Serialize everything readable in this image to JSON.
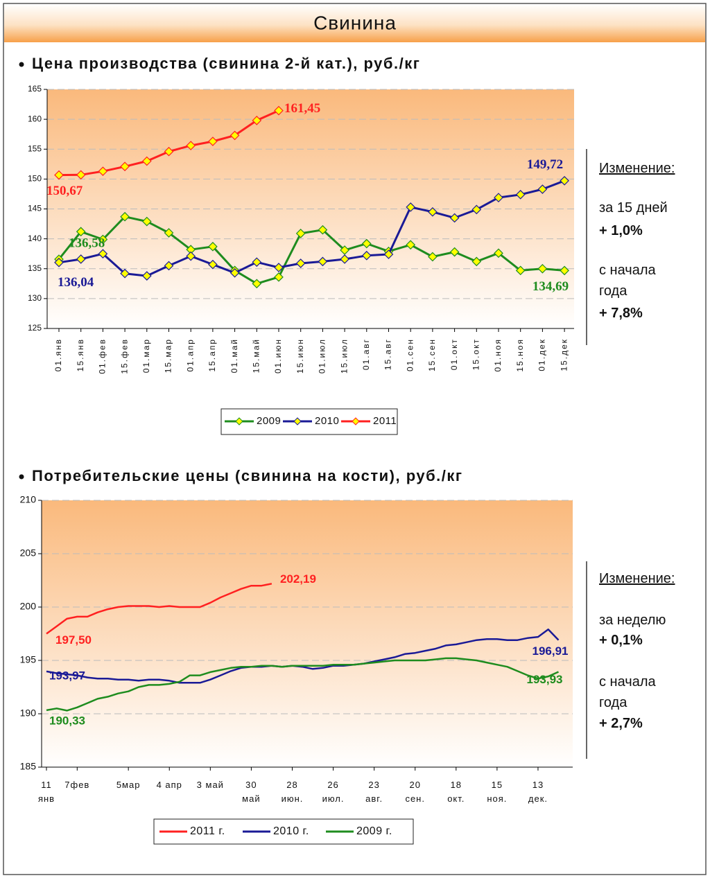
{
  "header": {
    "title": "Свинина"
  },
  "chart_data": [
    {
      "type": "line",
      "title": "Цена производства (свинина 2-й кат.), руб./кг",
      "categories": [
        "01.янв",
        "15.янв",
        "01.фев",
        "15.фев",
        "01.мар",
        "15.мар",
        "01.апр",
        "15.апр",
        "01.май",
        "15.май",
        "01.июн",
        "15.июн",
        "01.июл",
        "15.июл",
        "01.авг",
        "15.авг",
        "01.сен",
        "15.сен",
        "01.окт",
        "15.окт",
        "01.ноя",
        "15.ноя",
        "01.дек",
        "15.дек"
      ],
      "series": [
        {
          "name": "2009",
          "color": "#1e8c1e",
          "values": [
            136.58,
            141.2,
            139.9,
            143.7,
            142.9,
            141.0,
            138.2,
            138.7,
            134.7,
            132.5,
            133.6,
            140.9,
            141.5,
            138.1,
            139.2,
            137.9,
            139.0,
            137.0,
            137.8,
            136.2,
            137.6,
            134.7,
            135.0,
            134.69
          ],
          "value_labels": [
            "136,58",
            null,
            null,
            null,
            null,
            null,
            null,
            null,
            null,
            null,
            null,
            null,
            null,
            null,
            null,
            null,
            null,
            null,
            null,
            null,
            null,
            null,
            null,
            "134,69"
          ]
        },
        {
          "name": "2010",
          "color": "#1a1a96",
          "values": [
            136.04,
            136.6,
            137.5,
            134.2,
            133.8,
            135.5,
            137.1,
            135.7,
            134.3,
            136.1,
            135.2,
            135.9,
            136.2,
            136.6,
            137.2,
            137.4,
            145.3,
            144.5,
            143.5,
            144.9,
            146.9,
            147.4,
            148.3,
            149.72
          ],
          "value_labels": [
            "136,04",
            null,
            null,
            null,
            null,
            null,
            null,
            null,
            null,
            null,
            null,
            null,
            null,
            null,
            null,
            null,
            null,
            null,
            null,
            null,
            null,
            null,
            null,
            "149,72"
          ]
        },
        {
          "name": "2011",
          "color": "#ff2020",
          "values": [
            150.67,
            150.7,
            151.3,
            152.1,
            153.0,
            154.6,
            155.6,
            156.3,
            157.3,
            159.8,
            161.45,
            null,
            null,
            null,
            null,
            null,
            null,
            null,
            null,
            null,
            null,
            null,
            null,
            null
          ],
          "value_labels": [
            "150,67",
            null,
            null,
            null,
            null,
            null,
            null,
            null,
            null,
            null,
            "161,45",
            null,
            null,
            null,
            null,
            null,
            null,
            null,
            null,
            null,
            null,
            null,
            null,
            null
          ]
        }
      ],
      "marker": "diamond",
      "marker_color": "#ffff00",
      "ylim": [
        125,
        165
      ],
      "yticks": [
        125,
        130,
        135,
        140,
        145,
        150,
        155,
        160,
        165
      ],
      "grid": true
    },
    {
      "type": "line",
      "title": "Потребительские цены (свинина на кости), руб./кг",
      "categories": [
        "11\nянв",
        null,
        null,
        "7фев",
        null,
        null,
        null,
        null,
        "5мар",
        null,
        null,
        null,
        "4 апр",
        null,
        null,
        null,
        "3 май",
        null,
        null,
        null,
        "30\nмай",
        null,
        null,
        null,
        "28\nиюн.",
        null,
        null,
        null,
        "26\nиюл.",
        null,
        null,
        null,
        "23\nавг.",
        null,
        null,
        null,
        "20\nсен.",
        null,
        null,
        null,
        "18\nокт.",
        null,
        null,
        null,
        "15\nноя.",
        null,
        null,
        null,
        "13\nдек.",
        null,
        null
      ],
      "series": [
        {
          "name": "2011 г.",
          "color": "#ff2020",
          "values": [
            197.5,
            198.2,
            198.9,
            199.1,
            199.1,
            199.5,
            199.8,
            200.0,
            200.1,
            200.1,
            200.1,
            200.0,
            200.1,
            200.0,
            200.0,
            200.0,
            200.4,
            200.9,
            201.3,
            201.7,
            202.0,
            202.0,
            202.19,
            null,
            null,
            null,
            null,
            null,
            null,
            null,
            null,
            null,
            null,
            null,
            null,
            null,
            null,
            null,
            null,
            null,
            null,
            null,
            null,
            null,
            null,
            null,
            null,
            null,
            null,
            null,
            null
          ],
          "value_labels": [
            "197,50",
            null,
            null,
            null,
            null,
            null,
            null,
            null,
            null,
            null,
            null,
            null,
            null,
            null,
            null,
            null,
            null,
            null,
            null,
            null,
            null,
            null,
            "202,19",
            null,
            null,
            null,
            null,
            null,
            null,
            null,
            null,
            null,
            null,
            null,
            null,
            null,
            null,
            null,
            null,
            null,
            null,
            null,
            null,
            null,
            null,
            null,
            null,
            null,
            null,
            null,
            null
          ]
        },
        {
          "name": "2010 г.",
          "color": "#1a1a96",
          "values": [
            193.97,
            193.8,
            193.7,
            193.6,
            193.4,
            193.3,
            193.3,
            193.2,
            193.2,
            193.1,
            193.2,
            193.2,
            193.1,
            192.9,
            192.9,
            192.9,
            193.2,
            193.6,
            194.0,
            194.3,
            194.4,
            194.4,
            194.5,
            194.4,
            194.5,
            194.4,
            194.2,
            194.3,
            194.5,
            194.5,
            194.6,
            194.7,
            194.9,
            195.1,
            195.3,
            195.6,
            195.7,
            195.9,
            196.1,
            196.4,
            196.5,
            196.7,
            196.9,
            197.0,
            197.0,
            196.9,
            196.9,
            197.1,
            197.2,
            197.9,
            196.91
          ],
          "value_labels": [
            "193,97",
            null,
            null,
            null,
            null,
            null,
            null,
            null,
            null,
            null,
            null,
            null,
            null,
            null,
            null,
            null,
            null,
            null,
            null,
            null,
            null,
            null,
            null,
            null,
            null,
            null,
            null,
            null,
            null,
            null,
            null,
            null,
            null,
            null,
            null,
            null,
            null,
            null,
            null,
            null,
            null,
            null,
            null,
            null,
            null,
            null,
            null,
            null,
            null,
            null,
            "196,91"
          ]
        },
        {
          "name": "2009 г.",
          "color": "#1e8c1e",
          "values": [
            190.33,
            190.5,
            190.3,
            190.6,
            191.0,
            191.4,
            191.6,
            191.9,
            192.1,
            192.5,
            192.7,
            192.7,
            192.8,
            193.0,
            193.6,
            193.6,
            193.9,
            194.1,
            194.3,
            194.4,
            194.4,
            194.5,
            194.5,
            194.4,
            194.5,
            194.5,
            194.5,
            194.5,
            194.6,
            194.6,
            194.6,
            194.7,
            194.8,
            194.9,
            195.0,
            195.0,
            195.0,
            195.0,
            195.1,
            195.2,
            195.2,
            195.1,
            195.0,
            194.8,
            194.6,
            194.4,
            194.0,
            193.6,
            193.3,
            193.5,
            193.93
          ],
          "value_labels": [
            "190,33",
            null,
            null,
            null,
            null,
            null,
            null,
            null,
            null,
            null,
            null,
            null,
            null,
            null,
            null,
            null,
            null,
            null,
            null,
            null,
            null,
            null,
            null,
            null,
            null,
            null,
            null,
            null,
            null,
            null,
            null,
            null,
            null,
            null,
            null,
            null,
            null,
            null,
            null,
            null,
            null,
            null,
            null,
            null,
            null,
            null,
            null,
            null,
            null,
            null,
            "193,93"
          ]
        }
      ],
      "ylim": [
        185,
        210
      ],
      "yticks": [
        185,
        190,
        195,
        200,
        205,
        210
      ],
      "grid": true
    }
  ],
  "notes": [
    {
      "heading": "Изменение:",
      "period": "за 15 дней",
      "period_change": "+ 1,0%",
      "ytd": "с начала года",
      "ytd_change": "+ 7,8%"
    },
    {
      "heading": "Изменение:",
      "period": "за неделю",
      "period_change": "+ 0,1%",
      "ytd": "с начала года",
      "ytd_change": "+ 2,7%"
    }
  ]
}
